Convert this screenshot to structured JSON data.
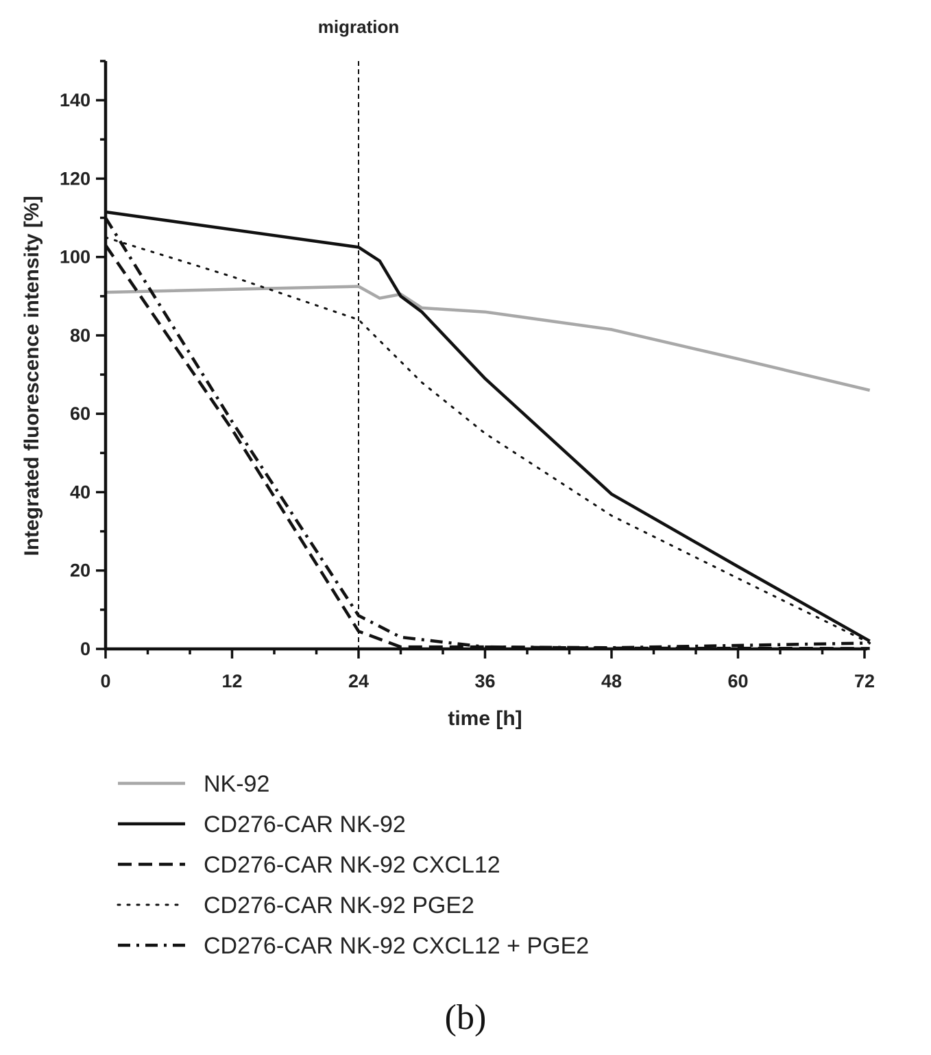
{
  "chart_data": {
    "type": "line",
    "title": "",
    "annotation": "migration",
    "annotation_x": 24,
    "xlabel": "time [h]",
    "ylabel": "Integrated fluorescence intensity [%]",
    "xlim": [
      0,
      72
    ],
    "ylim": [
      0,
      150
    ],
    "xticks": [
      0,
      12,
      24,
      36,
      48,
      60,
      72
    ],
    "xtick_labels": [
      "0",
      "12",
      "24",
      "36",
      "48",
      "60",
      "72"
    ],
    "yticks": [
      0,
      20,
      40,
      60,
      80,
      100,
      120,
      140
    ],
    "ytick_labels": [
      "0",
      "20",
      "40",
      "60",
      "80",
      "100",
      "120",
      "140"
    ],
    "grid": false,
    "legend_position": "bottom",
    "series": [
      {
        "name": "NK-92",
        "color": "#a8a8a8",
        "style": "solid",
        "x": [
          0,
          24,
          26,
          28,
          30,
          36,
          48,
          60,
          72.5
        ],
        "y": [
          91,
          92.5,
          89.5,
          90.5,
          87,
          86,
          81.5,
          74,
          66
        ]
      },
      {
        "name": "CD276-CAR NK-92",
        "color": "#111111",
        "style": "solid",
        "x": [
          0,
          24,
          26,
          28,
          30,
          36,
          48,
          60,
          72.5
        ],
        "y": [
          111.5,
          102.5,
          99,
          90,
          86,
          69,
          39.5,
          21,
          2
        ]
      },
      {
        "name": "CD276-CAR NK-92 CXCL12",
        "color": "#111111",
        "style": "dashed",
        "x": [
          0,
          12,
          24,
          28,
          36,
          48,
          72.5
        ],
        "y": [
          103,
          56,
          4.5,
          0.5,
          0.5,
          0.2,
          0.1
        ]
      },
      {
        "name": "CD276-CAR NK-92 PGE2",
        "color": "#111111",
        "style": "dotted",
        "x": [
          0,
          12,
          24,
          30,
          36,
          48,
          60,
          72.5
        ],
        "y": [
          105,
          95,
          84,
          68,
          55,
          34,
          18,
          1.5
        ]
      },
      {
        "name": "CD276-CAR NK-92 CXCL12 + PGE2",
        "color": "#111111",
        "style": "dashdot",
        "x": [
          0,
          12,
          24,
          28,
          36,
          48,
          72.5
        ],
        "y": [
          110,
          58,
          8.5,
          3,
          0.5,
          0.3,
          1.5
        ]
      }
    ]
  },
  "panel_label": "(b)"
}
